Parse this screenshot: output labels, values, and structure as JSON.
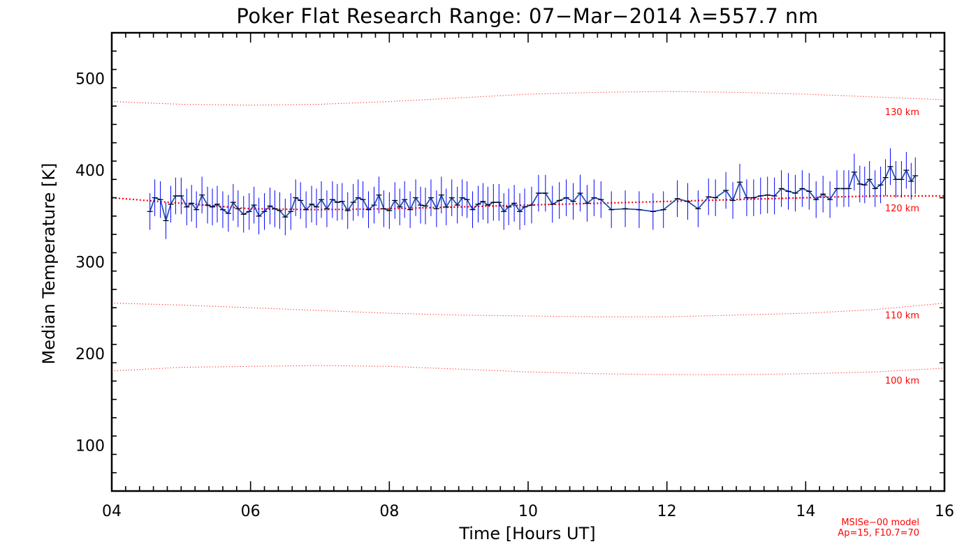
{
  "chart_data": {
    "type": "line",
    "title": "Poker Flat Research Range: 07−Mar−2014 λ=557.7 nm",
    "xlabel": "Time [Hours UT]",
    "ylabel": "Median Temperature [K]",
    "xlim": [
      4,
      16
    ],
    "ylim": [
      50,
      550
    ],
    "x_ticks": [
      "04",
      "06",
      "08",
      "10",
      "12",
      "14",
      "16"
    ],
    "y_ticks": [
      "100",
      "200",
      "300",
      "400",
      "500"
    ],
    "grid": false,
    "footnote": [
      "MSISe−00 model",
      "Ap=15, F10.7=70"
    ],
    "colors": {
      "median": "#000000",
      "error_bars": "#0000ff",
      "smoothed": "#1c6b6b",
      "model": "#ff0000"
    },
    "series": [
      {
        "error_bar": 20,
        "points": [
          [
            4.55,
            355
          ],
          [
            4.62,
            370
          ],
          [
            4.7,
            368
          ],
          [
            4.78,
            345
          ],
          [
            4.85,
            363
          ],
          [
            4.92,
            372
          ],
          [
            5.0,
            372
          ],
          [
            5.08,
            360
          ],
          [
            5.15,
            364
          ],
          [
            5.22,
            357
          ],
          [
            5.3,
            373
          ],
          [
            5.38,
            362
          ],
          [
            5.45,
            360
          ],
          [
            5.52,
            363
          ],
          [
            5.6,
            357
          ],
          [
            5.68,
            353
          ],
          [
            5.75,
            365
          ],
          [
            5.82,
            358
          ],
          [
            5.9,
            352
          ],
          [
            5.98,
            355
          ],
          [
            6.05,
            362
          ],
          [
            6.12,
            350
          ],
          [
            6.2,
            355
          ],
          [
            6.28,
            361
          ],
          [
            6.35,
            358
          ],
          [
            6.42,
            356
          ],
          [
            6.5,
            349
          ],
          [
            6.58,
            355
          ],
          [
            6.65,
            370
          ],
          [
            6.72,
            367
          ],
          [
            6.8,
            357
          ],
          [
            6.88,
            363
          ],
          [
            6.95,
            360
          ],
          [
            7.02,
            368
          ],
          [
            7.1,
            358
          ],
          [
            7.18,
            368
          ],
          [
            7.25,
            365
          ],
          [
            7.32,
            366
          ],
          [
            7.4,
            356
          ],
          [
            7.48,
            365
          ],
          [
            7.55,
            370
          ],
          [
            7.62,
            368
          ],
          [
            7.7,
            357
          ],
          [
            7.78,
            362
          ],
          [
            7.85,
            373
          ],
          [
            7.92,
            358
          ],
          [
            8.0,
            356
          ],
          [
            8.08,
            367
          ],
          [
            8.15,
            360
          ],
          [
            8.22,
            368
          ],
          [
            8.3,
            357
          ],
          [
            8.38,
            370
          ],
          [
            8.45,
            362
          ],
          [
            8.52,
            361
          ],
          [
            8.6,
            370
          ],
          [
            8.68,
            358
          ],
          [
            8.75,
            373
          ],
          [
            8.82,
            360
          ],
          [
            8.9,
            370
          ],
          [
            8.98,
            362
          ],
          [
            9.05,
            370
          ],
          [
            9.12,
            368
          ],
          [
            9.2,
            357
          ],
          [
            9.28,
            363
          ],
          [
            9.35,
            366
          ],
          [
            9.42,
            362
          ],
          [
            9.5,
            365
          ],
          [
            9.58,
            365
          ],
          [
            9.65,
            355
          ],
          [
            9.72,
            360
          ],
          [
            9.8,
            364
          ],
          [
            9.88,
            355
          ],
          [
            9.95,
            360
          ],
          [
            10.05,
            362
          ],
          [
            10.15,
            375
          ],
          [
            10.25,
            375
          ],
          [
            10.35,
            363
          ],
          [
            10.45,
            367
          ],
          [
            10.55,
            370
          ],
          [
            10.65,
            366
          ],
          [
            10.75,
            375
          ],
          [
            10.85,
            364
          ],
          [
            10.95,
            370
          ],
          [
            11.05,
            368
          ],
          [
            11.2,
            357
          ],
          [
            11.4,
            358
          ],
          [
            11.6,
            357
          ],
          [
            11.8,
            355
          ],
          [
            11.95,
            357
          ],
          [
            12.15,
            369
          ],
          [
            12.3,
            366
          ],
          [
            12.45,
            358
          ],
          [
            12.6,
            371
          ],
          [
            12.7,
            370
          ],
          [
            12.85,
            378
          ],
          [
            12.95,
            367
          ],
          [
            13.05,
            387
          ],
          [
            13.15,
            370
          ],
          [
            13.25,
            370
          ],
          [
            13.35,
            372
          ],
          [
            13.45,
            373
          ],
          [
            13.55,
            372
          ],
          [
            13.65,
            380
          ],
          [
            13.75,
            377
          ],
          [
            13.85,
            375
          ],
          [
            13.95,
            380
          ],
          [
            14.05,
            377
          ],
          [
            14.15,
            368
          ],
          [
            14.25,
            374
          ],
          [
            14.35,
            368
          ],
          [
            14.45,
            380
          ],
          [
            14.55,
            380
          ],
          [
            14.62,
            380
          ],
          [
            14.7,
            398
          ],
          [
            14.78,
            385
          ],
          [
            14.85,
            384
          ],
          [
            14.92,
            390
          ],
          [
            15.0,
            380
          ],
          [
            15.08,
            384
          ],
          [
            15.15,
            392
          ],
          [
            15.22,
            404
          ],
          [
            15.3,
            390
          ],
          [
            15.38,
            390
          ],
          [
            15.45,
            400
          ],
          [
            15.52,
            388
          ],
          [
            15.58,
            394
          ]
        ]
      }
    ],
    "model_curves": [
      {
        "label": "130 km",
        "x": [
          4,
          5,
          6,
          7,
          8,
          9,
          10,
          11,
          12,
          13,
          14,
          15,
          16
        ],
        "y": [
          475,
          472,
          471,
          472,
          475,
          479,
          483,
          485,
          486,
          485,
          483,
          480,
          477
        ]
      },
      {
        "label": "120 km",
        "x": [
          4,
          5,
          6,
          7,
          8,
          9,
          10,
          11,
          12,
          13,
          14,
          15,
          16
        ],
        "y": [
          370,
          364,
          358,
          357,
          358,
          360,
          362,
          364,
          366,
          368,
          370,
          372,
          372
        ]
      },
      {
        "label": "110 km",
        "x": [
          4,
          5,
          6,
          7,
          8,
          9,
          10,
          11,
          12,
          13,
          14,
          15,
          16
        ],
        "y": [
          255,
          253,
          250,
          247,
          244,
          242,
          241,
          240,
          240,
          242,
          244,
          248,
          255
        ]
      },
      {
        "label": "100 km",
        "x": [
          4,
          5,
          6,
          7,
          8,
          9,
          10,
          11,
          12,
          13,
          14,
          15,
          16
        ],
        "y": [
          181,
          185,
          186,
          187,
          186,
          183,
          180,
          178,
          177,
          177,
          178,
          180,
          184
        ]
      }
    ]
  }
}
